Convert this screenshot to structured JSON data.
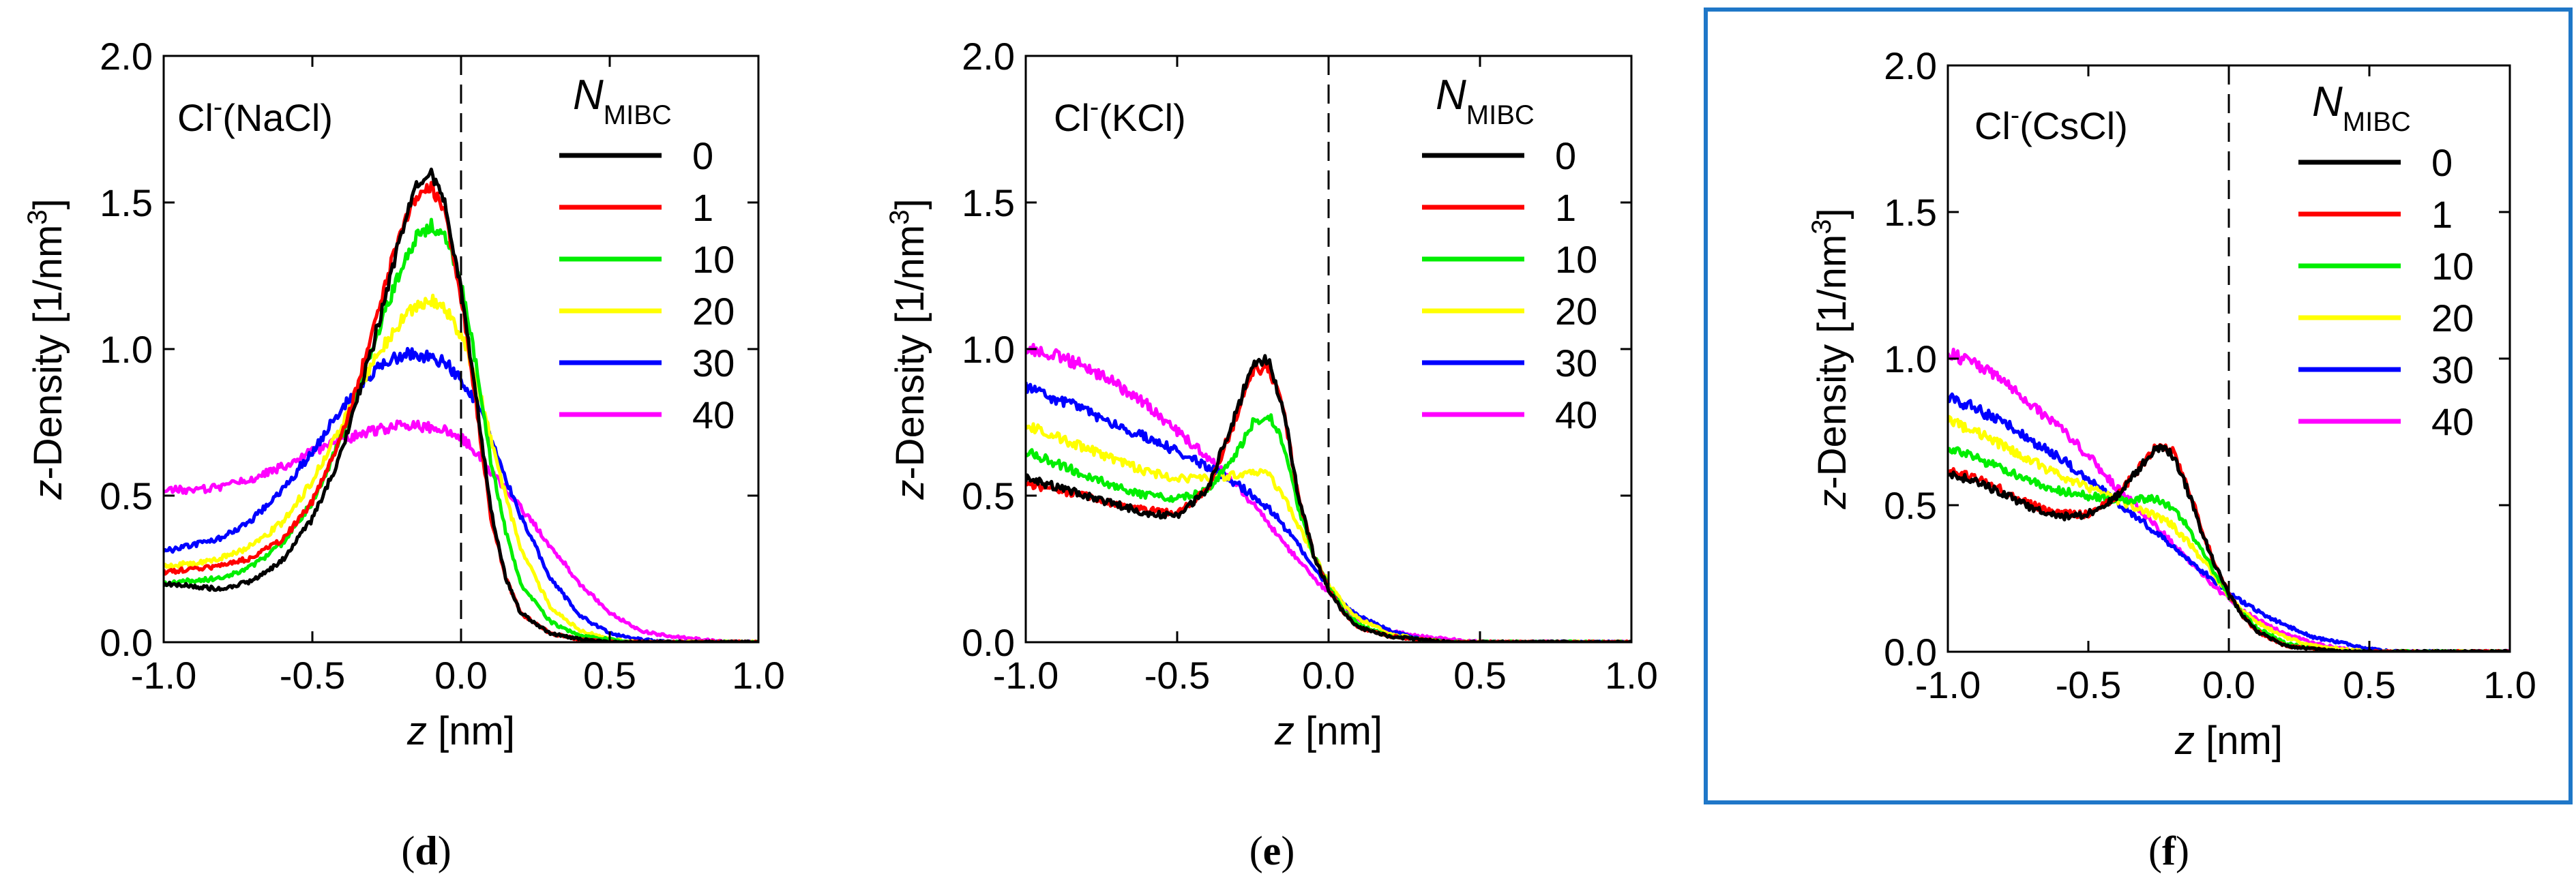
{
  "chart_data": [
    {
      "type": "line",
      "panel_label": "d",
      "title_main": "Cl",
      "title_sup": "-",
      "title_rest": "(NaCl)",
      "xlabel_italic": "z",
      "xlabel_rest": " [nm]",
      "ylabel_italic": "z",
      "ylabel_rest": "-Density [1/nm",
      "ylabel_sup": "3",
      "ylabel_close": "]",
      "legend_title_main": "N",
      "legend_title_sub": "MIBC",
      "xlim": [
        -1.0,
        1.0
      ],
      "ylim": [
        0.0,
        2.0
      ],
      "xticks": [
        "-1.0",
        "-0.5",
        "0.0",
        "0.5",
        "1.0"
      ],
      "yticks": [
        "0.0",
        "0.5",
        "1.0",
        "1.5",
        "2.0"
      ],
      "highlighted": false,
      "x": [
        -1.0,
        -0.9,
        -0.8,
        -0.7,
        -0.6,
        -0.5,
        -0.4,
        -0.3,
        -0.2,
        -0.15,
        -0.1,
        -0.05,
        0.0,
        0.05,
        0.1,
        0.15,
        0.2,
        0.3,
        0.4,
        0.5,
        0.6,
        0.7,
        0.8,
        0.9,
        1.0
      ],
      "series": [
        {
          "name": "0",
          "color": "#000000",
          "values": [
            0.2,
            0.19,
            0.18,
            0.21,
            0.28,
            0.42,
            0.65,
            1.0,
            1.4,
            1.55,
            1.6,
            1.48,
            1.2,
            0.85,
            0.45,
            0.22,
            0.1,
            0.03,
            0.01,
            0.0,
            0.0,
            0.0,
            0.0,
            0.0,
            0.0
          ]
        },
        {
          "name": "1",
          "color": "#ff0000",
          "values": [
            0.24,
            0.25,
            0.26,
            0.29,
            0.35,
            0.48,
            0.7,
            1.05,
            1.42,
            1.52,
            1.55,
            1.45,
            1.18,
            0.82,
            0.43,
            0.22,
            0.1,
            0.03,
            0.01,
            0.0,
            0.0,
            0.0,
            0.0,
            0.0,
            0.0
          ]
        },
        {
          "name": "10",
          "color": "#00ee00",
          "values": [
            0.2,
            0.21,
            0.22,
            0.26,
            0.34,
            0.48,
            0.7,
            1.0,
            1.28,
            1.38,
            1.42,
            1.38,
            1.22,
            0.95,
            0.62,
            0.38,
            0.2,
            0.07,
            0.02,
            0.01,
            0.0,
            0.0,
            0.0,
            0.0,
            0.0
          ]
        },
        {
          "name": "20",
          "color": "#ffff00",
          "values": [
            0.26,
            0.27,
            0.29,
            0.33,
            0.41,
            0.55,
            0.74,
            0.95,
            1.1,
            1.15,
            1.17,
            1.13,
            1.05,
            0.9,
            0.7,
            0.5,
            0.32,
            0.12,
            0.04,
            0.01,
            0.0,
            0.0,
            0.0,
            0.0,
            0.0
          ]
        },
        {
          "name": "30",
          "color": "#0000ff",
          "values": [
            0.31,
            0.33,
            0.36,
            0.42,
            0.52,
            0.65,
            0.8,
            0.92,
            0.98,
            0.98,
            0.97,
            0.95,
            0.9,
            0.82,
            0.7,
            0.56,
            0.43,
            0.22,
            0.09,
            0.03,
            0.01,
            0.0,
            0.0,
            0.0,
            0.0
          ]
        },
        {
          "name": "40",
          "color": "#ff00ff",
          "values": [
            0.52,
            0.52,
            0.53,
            0.56,
            0.6,
            0.65,
            0.69,
            0.72,
            0.74,
            0.74,
            0.73,
            0.72,
            0.7,
            0.65,
            0.58,
            0.52,
            0.46,
            0.33,
            0.2,
            0.1,
            0.04,
            0.02,
            0.01,
            0.0,
            0.0
          ]
        }
      ]
    },
    {
      "type": "line",
      "panel_label": "e",
      "title_main": "Cl",
      "title_sup": "-",
      "title_rest": "(KCl)",
      "xlabel_italic": "z",
      "xlabel_rest": " [nm]",
      "ylabel_italic": "z",
      "ylabel_rest": "-Density [1/nm",
      "ylabel_sup": "3",
      "ylabel_close": "]",
      "legend_title_main": "N",
      "legend_title_sub": "MIBC",
      "xlim": [
        -1.0,
        1.0
      ],
      "ylim": [
        0.0,
        2.0
      ],
      "xticks": [
        "-1.0",
        "-0.5",
        "0.0",
        "0.5",
        "1.0"
      ],
      "yticks": [
        "0.0",
        "0.5",
        "1.0",
        "1.5",
        "2.0"
      ],
      "highlighted": false,
      "x": [
        -1.0,
        -0.9,
        -0.8,
        -0.7,
        -0.6,
        -0.5,
        -0.4,
        -0.3,
        -0.25,
        -0.2,
        -0.15,
        -0.1,
        -0.05,
        0.0,
        0.05,
        0.1,
        0.2,
        0.3,
        0.4,
        0.5,
        0.6,
        0.7,
        0.8,
        0.9,
        1.0
      ],
      "series": [
        {
          "name": "0",
          "color": "#000000",
          "values": [
            0.56,
            0.53,
            0.5,
            0.47,
            0.44,
            0.43,
            0.52,
            0.8,
            0.95,
            0.96,
            0.8,
            0.5,
            0.3,
            0.18,
            0.1,
            0.05,
            0.02,
            0.01,
            0.0,
            0.0,
            0.0,
            0.0,
            0.0,
            0.0,
            0.0
          ]
        },
        {
          "name": "1",
          "color": "#ff0000",
          "values": [
            0.54,
            0.52,
            0.5,
            0.47,
            0.45,
            0.44,
            0.52,
            0.78,
            0.93,
            0.94,
            0.8,
            0.5,
            0.3,
            0.18,
            0.1,
            0.05,
            0.02,
            0.01,
            0.0,
            0.0,
            0.0,
            0.0,
            0.0,
            0.0,
            0.0
          ]
        },
        {
          "name": "10",
          "color": "#00ee00",
          "values": [
            0.65,
            0.61,
            0.57,
            0.53,
            0.5,
            0.49,
            0.52,
            0.65,
            0.75,
            0.78,
            0.68,
            0.46,
            0.3,
            0.19,
            0.11,
            0.06,
            0.02,
            0.01,
            0.0,
            0.0,
            0.0,
            0.0,
            0.0,
            0.0,
            0.0
          ]
        },
        {
          "name": "20",
          "color": "#ffff00",
          "values": [
            0.74,
            0.7,
            0.66,
            0.62,
            0.58,
            0.56,
            0.56,
            0.57,
            0.58,
            0.57,
            0.5,
            0.4,
            0.3,
            0.2,
            0.13,
            0.08,
            0.03,
            0.01,
            0.0,
            0.0,
            0.0,
            0.0,
            0.0,
            0.0,
            0.0
          ]
        },
        {
          "name": "30",
          "color": "#0000ff",
          "values": [
            0.87,
            0.83,
            0.79,
            0.74,
            0.7,
            0.65,
            0.6,
            0.54,
            0.5,
            0.46,
            0.4,
            0.33,
            0.26,
            0.19,
            0.13,
            0.09,
            0.04,
            0.01,
            0.0,
            0.0,
            0.0,
            0.0,
            0.0,
            0.0,
            0.0
          ]
        },
        {
          "name": "40",
          "color": "#ff00ff",
          "values": [
            1.0,
            0.98,
            0.94,
            0.88,
            0.81,
            0.72,
            0.63,
            0.53,
            0.47,
            0.41,
            0.34,
            0.28,
            0.22,
            0.17,
            0.12,
            0.08,
            0.04,
            0.02,
            0.01,
            0.0,
            0.0,
            0.0,
            0.0,
            0.0,
            0.0
          ]
        }
      ]
    },
    {
      "type": "line",
      "panel_label": "f",
      "title_main": "Cl",
      "title_sup": "-",
      "title_rest": "(CsCl)",
      "xlabel_italic": "z",
      "xlabel_rest": " [nm]",
      "ylabel_italic": "z",
      "ylabel_rest": "-Density [1/nm",
      "ylabel_sup": "3",
      "ylabel_close": "]",
      "legend_title_main": "N",
      "legend_title_sub": "MIBC",
      "xlim": [
        -1.0,
        1.0
      ],
      "ylim": [
        0.0,
        2.0
      ],
      "xticks": [
        "-1.0",
        "-0.5",
        "0.0",
        "0.5",
        "1.0"
      ],
      "yticks": [
        "0.0",
        "0.5",
        "1.0",
        "1.5",
        "2.0"
      ],
      "highlighted": true,
      "border_color": "#1f77c8",
      "x": [
        -1.0,
        -0.9,
        -0.8,
        -0.7,
        -0.6,
        -0.5,
        -0.4,
        -0.3,
        -0.25,
        -0.2,
        -0.15,
        -0.1,
        -0.05,
        0.0,
        0.05,
        0.1,
        0.2,
        0.3,
        0.4,
        0.5,
        0.6,
        0.7,
        0.8,
        0.9,
        1.0
      ],
      "series": [
        {
          "name": "0",
          "color": "#000000",
          "values": [
            0.61,
            0.58,
            0.54,
            0.49,
            0.46,
            0.47,
            0.53,
            0.65,
            0.7,
            0.67,
            0.56,
            0.42,
            0.3,
            0.2,
            0.12,
            0.07,
            0.02,
            0.01,
            0.0,
            0.0,
            0.0,
            0.0,
            0.0,
            0.0,
            0.0
          ]
        },
        {
          "name": "1",
          "color": "#ff0000",
          "values": [
            0.62,
            0.59,
            0.55,
            0.5,
            0.47,
            0.47,
            0.53,
            0.65,
            0.71,
            0.68,
            0.57,
            0.43,
            0.3,
            0.2,
            0.12,
            0.07,
            0.02,
            0.01,
            0.0,
            0.0,
            0.0,
            0.0,
            0.0,
            0.0,
            0.0
          ]
        },
        {
          "name": "10",
          "color": "#00ee00",
          "values": [
            0.7,
            0.66,
            0.62,
            0.58,
            0.55,
            0.53,
            0.52,
            0.52,
            0.52,
            0.49,
            0.43,
            0.35,
            0.27,
            0.19,
            0.13,
            0.08,
            0.03,
            0.01,
            0.0,
            0.0,
            0.0,
            0.0,
            0.0,
            0.0,
            0.0
          ]
        },
        {
          "name": "20",
          "color": "#ffff00",
          "values": [
            0.79,
            0.75,
            0.7,
            0.65,
            0.6,
            0.56,
            0.52,
            0.48,
            0.46,
            0.43,
            0.38,
            0.32,
            0.26,
            0.19,
            0.14,
            0.1,
            0.05,
            0.02,
            0.01,
            0.0,
            0.0,
            0.0,
            0.0,
            0.0,
            0.0
          ]
        },
        {
          "name": "30",
          "color": "#0000ff",
          "values": [
            0.87,
            0.83,
            0.78,
            0.72,
            0.66,
            0.59,
            0.51,
            0.44,
            0.4,
            0.36,
            0.32,
            0.28,
            0.24,
            0.2,
            0.17,
            0.14,
            0.09,
            0.05,
            0.03,
            0.01,
            0.0,
            0.0,
            0.0,
            0.0,
            0.0
          ]
        },
        {
          "name": "40",
          "color": "#ff00ff",
          "values": [
            1.02,
            0.98,
            0.92,
            0.84,
            0.76,
            0.67,
            0.56,
            0.47,
            0.42,
            0.37,
            0.32,
            0.27,
            0.22,
            0.18,
            0.14,
            0.11,
            0.06,
            0.03,
            0.01,
            0.0,
            0.0,
            0.0,
            0.0,
            0.0,
            0.0
          ]
        }
      ]
    }
  ]
}
